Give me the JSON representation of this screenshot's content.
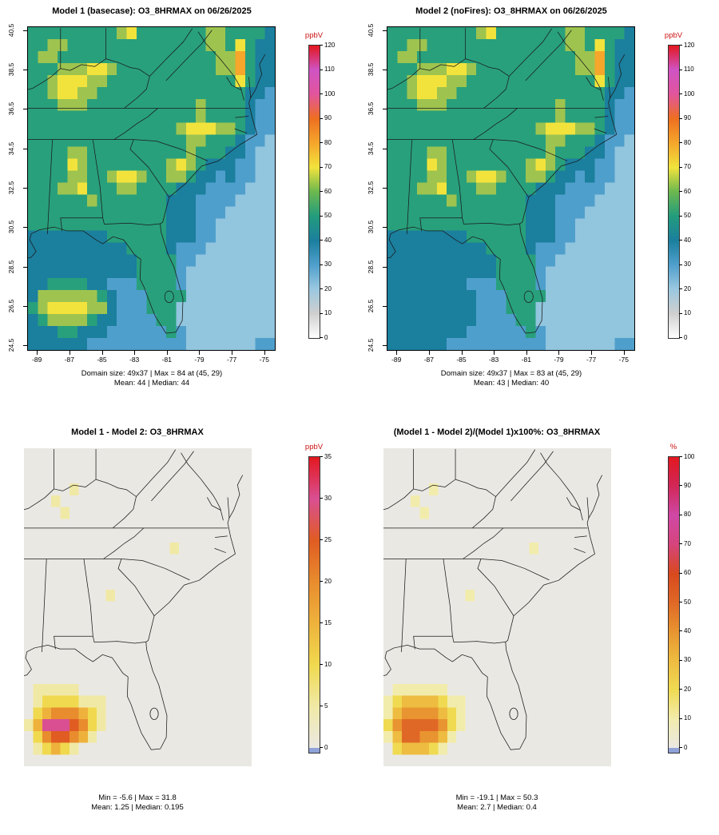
{
  "page": {
    "background": "#ffffff"
  },
  "colors": {
    "unit_label": "#cc1111",
    "outline": "#1a1a1a",
    "negative_sliver": "#8fa3d8",
    "axis_text": "#000000"
  },
  "chart_data": [
    {
      "type": "heatmap",
      "title": "Model 1 (basecase): O3_8HRMAX on 06/26/2025",
      "unit": "ppbV",
      "caption1": "Domain size: 49x37 | Max = 84 at (45, 29)",
      "caption2": "Mean: 44 |  Median: 44",
      "x_ticks": [
        "-89",
        "-87",
        "-85",
        "-83",
        "-81",
        "-79",
        "-77",
        "-75"
      ],
      "y_ticks": [
        "40.5",
        "38.5",
        "36.5",
        "34.5",
        "32.5",
        "30.5",
        "28.5",
        "26.5",
        "24.5"
      ],
      "x_range": [
        -89.6,
        -74.4
      ],
      "y_range": [
        24.3,
        40.7
      ],
      "colorbar": {
        "min": 0,
        "max": 120,
        "has_negative": false,
        "ticks": [
          "0",
          "10",
          "20",
          "30",
          "40",
          "50",
          "60",
          "70",
          "80",
          "90",
          "100",
          "110",
          "120"
        ],
        "stops": [
          {
            "v": 0,
            "c": "#ffffff"
          },
          {
            "v": 10,
            "c": "#cfcfcf"
          },
          {
            "v": 20,
            "c": "#9ac8e0"
          },
          {
            "v": 30,
            "c": "#4f9fcc"
          },
          {
            "v": 40,
            "c": "#1b7f9e"
          },
          {
            "v": 50,
            "c": "#239c7d"
          },
          {
            "v": 60,
            "c": "#6cb84f"
          },
          {
            "v": 70,
            "c": "#f2e33c"
          },
          {
            "v": 80,
            "c": "#f5a62b"
          },
          {
            "v": 90,
            "c": "#ee6f20"
          },
          {
            "v": 100,
            "c": "#e2559c"
          },
          {
            "v": 110,
            "c": "#cf53c4"
          },
          {
            "v": 120,
            "c": "#e3181f"
          }
        ]
      },
      "palette": [
        "#fcfcfa",
        "#cdcdcd",
        "#92c5de",
        "#4f9fcc",
        "#1b7f9e",
        "#28a07c",
        "#9ec44f",
        "#f2e33c",
        "#f5a62b",
        "#ee6f20",
        "#e2559c",
        "#cf53c4",
        "#e3181f"
      ],
      "grid_note": "25 cols x 27 rows, each char = value bucket of 10 ppbV",
      "grid": [
        "5555555556755555556655554",
        "5566555555555555556657544",
        "5665555555555555555668544",
        "5556667765555555555668544",
        "5567776655555555555557544",
        "5567766555555555555555443",
        "5556665555555555565555433",
        "5555555555555555565555433",
        "5555555555555556777665433",
        "5555555555555555665554332",
        "5555665555555555655544322",
        "5555765555555567654443322",
        "5555665567765566544343322",
        "5556675556655554443333222",
        "5555556555555544433332222",
        "5555555555555544433322222",
        "5555555555555544433222222",
        "4444444455555544433222222",
        "4444444444555543332222222",
        "4444444444455553322222222",
        "4444444444455553222222222",
        "4455554433355553222222222",
        "4666666543335555222222222",
        "5677776643335552222222222",
        "4566665443333552222222222",
        "4445544433333353222222222",
        "4444443333333333222222233"
      ]
    },
    {
      "type": "heatmap",
      "title": "Model 2 (noFires): O3_8HRMAX on 06/26/2025",
      "unit": "ppbV",
      "caption1": "Domain size: 49x37 | Max = 83 at (45, 29)",
      "caption2": "Mean: 43 |  Median: 40",
      "x_ticks": [
        "-89",
        "-87",
        "-85",
        "-83",
        "-81",
        "-79",
        "-77",
        "-75"
      ],
      "y_ticks": [
        "40.5",
        "38.5",
        "36.5",
        "34.5",
        "32.5",
        "30.5",
        "28.5",
        "26.5",
        "24.5"
      ],
      "x_range": [
        -89.6,
        -74.4
      ],
      "y_range": [
        24.3,
        40.7
      ],
      "colorbar": {
        "min": 0,
        "max": 120,
        "has_negative": false,
        "ticks": [
          "0",
          "10",
          "20",
          "30",
          "40",
          "50",
          "60",
          "70",
          "80",
          "90",
          "100",
          "110",
          "120"
        ],
        "stops": [
          {
            "v": 0,
            "c": "#ffffff"
          },
          {
            "v": 10,
            "c": "#cfcfcf"
          },
          {
            "v": 20,
            "c": "#9ac8e0"
          },
          {
            "v": 30,
            "c": "#4f9fcc"
          },
          {
            "v": 40,
            "c": "#1b7f9e"
          },
          {
            "v": 50,
            "c": "#239c7d"
          },
          {
            "v": 60,
            "c": "#6cb84f"
          },
          {
            "v": 70,
            "c": "#f2e33c"
          },
          {
            "v": 80,
            "c": "#f5a62b"
          },
          {
            "v": 90,
            "c": "#ee6f20"
          },
          {
            "v": 100,
            "c": "#e2559c"
          },
          {
            "v": 110,
            "c": "#cf53c4"
          },
          {
            "v": 120,
            "c": "#e3181f"
          }
        ]
      },
      "palette": [
        "#fcfcfa",
        "#cdcdcd",
        "#92c5de",
        "#4f9fcc",
        "#1b7f9e",
        "#28a07c",
        "#9ec44f",
        "#f2e33c",
        "#f5a62b",
        "#ee6f20",
        "#e2559c",
        "#cf53c4",
        "#e3181f"
      ],
      "grid_note": "25 cols x 27 rows, each char = value bucket of 10 ppbV",
      "grid": [
        "5555555556755555556655554",
        "5566555555555555556657544",
        "5665555555555555555668544",
        "5556667765555555555668544",
        "5567776655555555555557544",
        "5567766555555555555555443",
        "5556665555555555565555433",
        "5555555555555555565555433",
        "5555555555555556777665433",
        "5555555555555555665554332",
        "5555665555555555655544322",
        "5555765555555567654443322",
        "5555665567765566544343322",
        "5556675556655554443333222",
        "5555556555555544433332222",
        "5555555555555544433322222",
        "5555555555555544433222222",
        "4444444455555544433222222",
        "4444444444555543332222222",
        "4444444444455553322222222",
        "4444444444455553222222222",
        "4444444433355553222222222",
        "4444444443335555222222222",
        "4444444443335552222222222",
        "4444444443333552222222222",
        "4444444433333353222222222",
        "4444443333333333222222233"
      ]
    },
    {
      "type": "heatmap",
      "title": "Model 1 - Model 2: O3_8HRMAX",
      "unit": "ppbV",
      "caption1": "Min = -5.6 | Max = 31.8",
      "caption2": "Mean: 1.25 |  Median: 0.195",
      "x_range": [
        -89.6,
        -74.4
      ],
      "y_range": [
        24.3,
        40.7
      ],
      "colorbar": {
        "min": -5.6,
        "max": 35,
        "has_negative": true,
        "ticks": [
          "0",
          "5",
          "10",
          "15",
          "20",
          "25",
          "30",
          "35"
        ],
        "stops": [
          {
            "v": 0,
            "c": "#eae8e3"
          },
          {
            "v": 5,
            "c": "#f0e9a6"
          },
          {
            "v": 10,
            "c": "#f0d94e"
          },
          {
            "v": 15,
            "c": "#eeb23c"
          },
          {
            "v": 20,
            "c": "#e88c2e"
          },
          {
            "v": 25,
            "c": "#e05c22"
          },
          {
            "v": 30,
            "c": "#d94f92"
          },
          {
            "v": 35,
            "c": "#e3181f"
          }
        ]
      },
      "palette": [
        "#eae8e3",
        "#f0e9a6",
        "#f0d94e",
        "#eeb23c",
        "#e88c2e",
        "#e05c22",
        "#d94f92",
        "#e3181f"
      ],
      "grid_note": "25 cols x 27 rows, each char = difference bucket of 5 ppbV",
      "grid": [
        "0000000000000000000000000",
        "0000000000000000000000000",
        "0000000000000000000000000",
        "0000010000000000000000000",
        "0001000000000000000000000",
        "0000100000000000000000000",
        "0000000000000000000000000",
        "0000000000000000000000000",
        "0000000000000000100000000",
        "0000000000000000000000000",
        "0000000000000000000000000",
        "0000000000000000000000000",
        "0000000001000000000000000",
        "0000000000000000000000000",
        "0000000000000000000000000",
        "0000000000000000000000000",
        "0000000000000000000000000",
        "0000000000000000000000000",
        "0000000000000000000000000",
        "0000000000000000000000000",
        "0111110000000000000000000",
        "0122221110000000000000000",
        "0234443210000000000000000",
        "1366654210000000000000000",
        "0245543100000000000000000",
        "0123210000000000000000000",
        "0000000000000000000000000"
      ]
    },
    {
      "type": "heatmap",
      "title": "(Model 1 - Model 2)/(Model 1)x100%: O3_8HRMAX",
      "unit": "%",
      "caption1": "Min = -19.1 | Max = 50.3",
      "caption2": "Mean: 2.7 |  Median: 0.4",
      "x_range": [
        -89.6,
        -74.4
      ],
      "y_range": [
        24.3,
        40.7
      ],
      "colorbar": {
        "min": -19.1,
        "max": 100,
        "has_negative": true,
        "ticks": [
          "0",
          "10",
          "20",
          "30",
          "40",
          "50",
          "60",
          "70",
          "80",
          "90",
          "100"
        ],
        "stops": [
          {
            "v": 0,
            "c": "#eae8e3"
          },
          {
            "v": 10,
            "c": "#f2ecac"
          },
          {
            "v": 20,
            "c": "#f0da52"
          },
          {
            "v": 30,
            "c": "#eebc40"
          },
          {
            "v": 40,
            "c": "#e89430"
          },
          {
            "v": 50,
            "c": "#e06826"
          },
          {
            "v": 60,
            "c": "#d8491e"
          },
          {
            "v": 70,
            "c": "#d6447c"
          },
          {
            "v": 80,
            "c": "#d048a6"
          },
          {
            "v": 90,
            "c": "#d12758"
          },
          {
            "v": 100,
            "c": "#e3181f"
          }
        ]
      },
      "palette": [
        "#eae8e3",
        "#f2ecac",
        "#f0da52",
        "#eebc40",
        "#e89430",
        "#e06826",
        "#d8491e",
        "#d6447c",
        "#d048a6",
        "#d12758",
        "#e3181f"
      ],
      "grid_note": "25 cols x 27 rows, each char = percent bucket of 10 %",
      "grid": [
        "0000000000000000000000000",
        "0000000000000000000000000",
        "0000000000000000000000000",
        "0000010000000000000000000",
        "0001000000000000000000000",
        "0000100000000000000000000",
        "0000000000000000000000000",
        "0000000000000000000000000",
        "0000000000000000100000000",
        "0000000000000000000000000",
        "0000000000000000000000000",
        "0000000000000000000000000",
        "0000000001000000000000000",
        "0000000000000000000000000",
        "0000000000000000000000000",
        "0000000000000000000000000",
        "0000000000000000000000000",
        "0000000000000000000000000",
        "0000000000000000000000000",
        "0000000000000000000000000",
        "0111111000000000000000000",
        "1233332110000000000000000",
        "1344443210000000000000000",
        "2455554210000000000000000",
        "1355443100000000000000000",
        "0233321000000000000000000",
        "0000000000000000000000000"
      ]
    }
  ]
}
